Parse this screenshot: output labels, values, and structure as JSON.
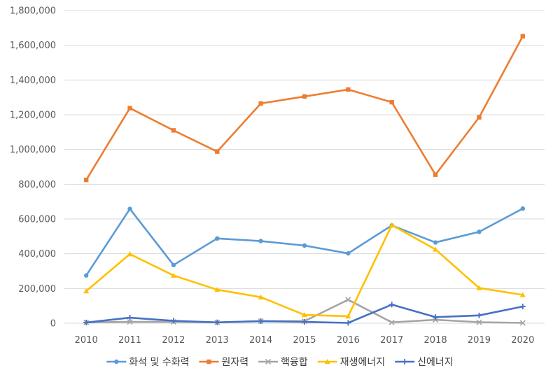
{
  "chart_data": {
    "type": "line",
    "title": "",
    "xlabel": "",
    "ylabel": "",
    "x": [
      "2010",
      "2011",
      "2012",
      "2013",
      "2014",
      "2015",
      "2016",
      "2017",
      "2018",
      "2019",
      "2020"
    ],
    "ylim": [
      0,
      1800000
    ],
    "yticks": [
      0,
      200000,
      400000,
      600000,
      800000,
      1000000,
      1200000,
      1400000,
      1600000,
      1800000
    ],
    "ytick_labels": [
      "0",
      "200,000",
      "400,000",
      "600,000",
      "800,000",
      "1,000,000",
      "1,200,000",
      "1,400,000",
      "1,600,000",
      "1,800,000"
    ],
    "grid": true,
    "legend_position": "bottom",
    "series": [
      {
        "name": "화석 및 수화력",
        "color": "#5B9BD5",
        "marker": "circle",
        "values": [
          275000,
          658000,
          335000,
          488000,
          473000,
          447000,
          402000,
          563000,
          465000,
          526000,
          660000
        ]
      },
      {
        "name": "원자력",
        "color": "#ED7D31",
        "marker": "square",
        "values": [
          825000,
          1238000,
          1110000,
          988000,
          1265000,
          1305000,
          1345000,
          1272000,
          855000,
          1185000,
          1652000
        ]
      },
      {
        "name": "핵융합",
        "color": "#A5A5A5",
        "marker": "x",
        "values": [
          5000,
          8000,
          8000,
          5000,
          12000,
          12000,
          135000,
          5000,
          20000,
          6000,
          2000
        ]
      },
      {
        "name": "재생에너지",
        "color": "#FFC000",
        "marker": "triangle",
        "values": [
          185000,
          398000,
          275000,
          193000,
          150000,
          48000,
          40000,
          565000,
          425000,
          203000,
          163000
        ]
      },
      {
        "name": "신에너지",
        "color": "#4472C4",
        "marker": "plus",
        "values": [
          4000,
          32000,
          14000,
          5000,
          12000,
          8000,
          2000,
          107000,
          35000,
          45000,
          96000
        ]
      }
    ]
  }
}
